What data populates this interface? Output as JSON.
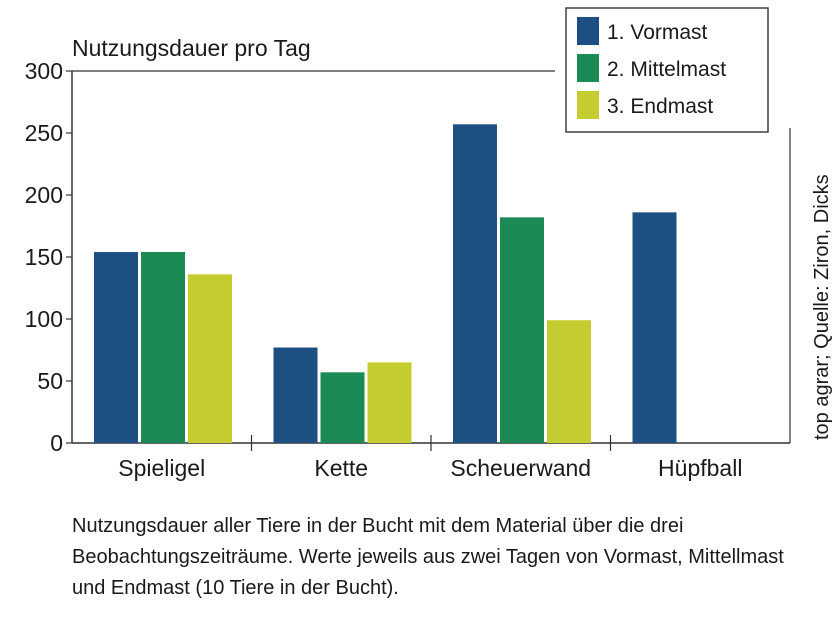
{
  "chart_data": {
    "type": "bar",
    "title": "Nutzungsdauer pro Tag",
    "categories": [
      "Spieligel",
      "Kette",
      "Scheuerwand",
      "Hüpfball"
    ],
    "series": [
      {
        "name": "1. Vormast",
        "color": "#1d4f82",
        "values": [
          154,
          77,
          257,
          186
        ]
      },
      {
        "name": "2. Mittelmast",
        "color": "#1c8a55",
        "values": [
          154,
          57,
          182,
          null
        ]
      },
      {
        "name": "3. Endmast",
        "color": "#c4cc30",
        "values": [
          136,
          65,
          99,
          null
        ]
      }
    ],
    "ylim": [
      0,
      300
    ],
    "yticks": [
      0,
      50,
      100,
      150,
      200,
      250,
      300
    ],
    "xlabel": "",
    "ylabel": "",
    "grid": false,
    "legend_position": "top-right",
    "source": "top agrar; Quelle: Ziron, Dicks"
  },
  "caption": "Nutzungsdauer aller Tiere in der Bucht mit dem Material über die drei Beobachtungszeiträume. Werte jeweils aus zwei Tagen von Vormast, Mittellmast und Endmast (10 Tiere in der Bucht)."
}
